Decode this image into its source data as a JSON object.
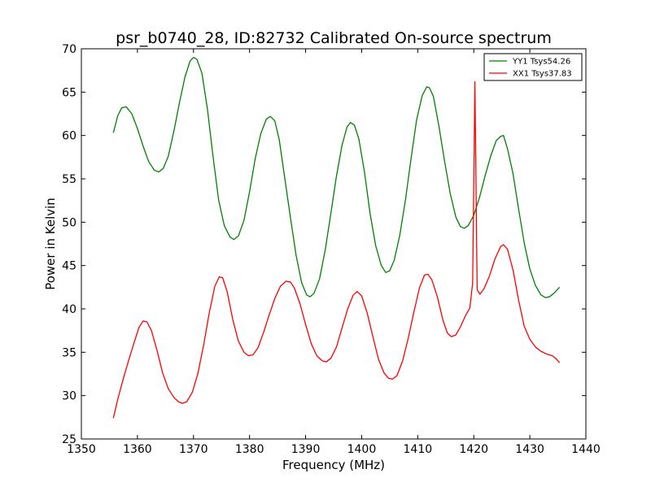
{
  "chart_data": {
    "type": "line",
    "title": "psr_b0740_28, ID:82732 Calibrated On-source spectrum",
    "xlabel": "Frequency (MHz)",
    "ylabel": "Power in Kelvin",
    "xlim": [
      1350,
      1440
    ],
    "ylim": [
      25,
      70
    ],
    "xticks": [
      1350,
      1360,
      1370,
      1380,
      1390,
      1400,
      1410,
      1420,
      1430,
      1440
    ],
    "yticks": [
      25,
      30,
      35,
      40,
      45,
      50,
      55,
      60,
      65,
      70
    ],
    "grid": false,
    "legend_position": "top-right",
    "series": [
      {
        "name": "YY1 Tsys54.26",
        "color": "#008000",
        "points": [
          [
            1355.7,
            60.3
          ],
          [
            1356.5,
            62.3
          ],
          [
            1357.2,
            63.2
          ],
          [
            1358,
            63.3
          ],
          [
            1359,
            62.5
          ],
          [
            1360,
            60.8
          ],
          [
            1361,
            58.8
          ],
          [
            1362,
            57.0
          ],
          [
            1363,
            56.0
          ],
          [
            1363.8,
            55.8
          ],
          [
            1364.6,
            56.2
          ],
          [
            1365.5,
            57.6
          ],
          [
            1366.5,
            60.5
          ],
          [
            1367.5,
            63.8
          ],
          [
            1368.5,
            66.8
          ],
          [
            1369.4,
            68.6
          ],
          [
            1370,
            69.0
          ],
          [
            1370.6,
            68.8
          ],
          [
            1371.5,
            67.2
          ],
          [
            1372.5,
            63.0
          ],
          [
            1373.5,
            57.5
          ],
          [
            1374.5,
            52.5
          ],
          [
            1375.5,
            49.6
          ],
          [
            1376.5,
            48.3
          ],
          [
            1377.2,
            48.0
          ],
          [
            1378,
            48.4
          ],
          [
            1379,
            50.2
          ],
          [
            1380,
            53.5
          ],
          [
            1381,
            57.3
          ],
          [
            1382,
            60.2
          ],
          [
            1383,
            61.9
          ],
          [
            1383.7,
            62.2
          ],
          [
            1384.5,
            61.7
          ],
          [
            1385.3,
            59.5
          ],
          [
            1386.3,
            55.0
          ],
          [
            1387.3,
            50.5
          ],
          [
            1388.3,
            46.2
          ],
          [
            1389.3,
            43.0
          ],
          [
            1390.2,
            41.6
          ],
          [
            1390.8,
            41.4
          ],
          [
            1391.5,
            41.8
          ],
          [
            1392.5,
            43.5
          ],
          [
            1393.5,
            46.8
          ],
          [
            1394.5,
            51.0
          ],
          [
            1395.5,
            55.3
          ],
          [
            1396.5,
            58.9
          ],
          [
            1397.4,
            61.0
          ],
          [
            1398,
            61.5
          ],
          [
            1398.7,
            61.2
          ],
          [
            1399.5,
            59.6
          ],
          [
            1400.5,
            55.8
          ],
          [
            1401.5,
            51.0
          ],
          [
            1402.5,
            47.3
          ],
          [
            1403.5,
            45.0
          ],
          [
            1404.3,
            44.2
          ],
          [
            1405,
            44.4
          ],
          [
            1405.8,
            45.6
          ],
          [
            1406.8,
            48.5
          ],
          [
            1407.8,
            52.5
          ],
          [
            1408.8,
            57.3
          ],
          [
            1409.8,
            61.8
          ],
          [
            1410.8,
            64.6
          ],
          [
            1411.6,
            65.6
          ],
          [
            1412.1,
            65.5
          ],
          [
            1412.8,
            64.5
          ],
          [
            1413.8,
            61.0
          ],
          [
            1414.8,
            57.0
          ],
          [
            1415.8,
            53.3
          ],
          [
            1416.8,
            50.6
          ],
          [
            1417.6,
            49.5
          ],
          [
            1418.3,
            49.3
          ],
          [
            1419,
            49.6
          ],
          [
            1420,
            50.8
          ],
          [
            1421,
            52.8
          ],
          [
            1422,
            55.3
          ],
          [
            1423,
            57.6
          ],
          [
            1424,
            59.4
          ],
          [
            1424.8,
            59.9
          ],
          [
            1425.3,
            60.0
          ],
          [
            1426,
            58.5
          ],
          [
            1427,
            55.6
          ],
          [
            1428,
            51.5
          ],
          [
            1429,
            47.6
          ],
          [
            1430,
            44.6
          ],
          [
            1431,
            42.7
          ],
          [
            1432,
            41.6
          ],
          [
            1432.8,
            41.3
          ],
          [
            1433.5,
            41.4
          ],
          [
            1434.3,
            41.8
          ],
          [
            1435.3,
            42.5
          ]
        ]
      },
      {
        "name": "XX1 Tsys37.83",
        "color": "#ff0000",
        "points": [
          [
            1355.7,
            27.4
          ],
          [
            1356.5,
            29.6
          ],
          [
            1357.5,
            32.0
          ],
          [
            1358.5,
            34.2
          ],
          [
            1359.5,
            36.3
          ],
          [
            1360.3,
            37.9
          ],
          [
            1361,
            38.6
          ],
          [
            1361.7,
            38.5
          ],
          [
            1362.5,
            37.5
          ],
          [
            1363.5,
            35.2
          ],
          [
            1364.5,
            32.6
          ],
          [
            1365.5,
            30.8
          ],
          [
            1366.5,
            29.8
          ],
          [
            1367.3,
            29.3
          ],
          [
            1368,
            29.1
          ],
          [
            1368.8,
            29.3
          ],
          [
            1369.8,
            30.4
          ],
          [
            1370.8,
            32.6
          ],
          [
            1371.8,
            35.8
          ],
          [
            1372.8,
            39.5
          ],
          [
            1373.8,
            42.6
          ],
          [
            1374.6,
            43.7
          ],
          [
            1375.2,
            43.6
          ],
          [
            1376,
            42.0
          ],
          [
            1377,
            38.8
          ],
          [
            1378,
            36.3
          ],
          [
            1379,
            35.0
          ],
          [
            1379.8,
            34.6
          ],
          [
            1380.6,
            34.7
          ],
          [
            1381.5,
            35.5
          ],
          [
            1382.5,
            37.3
          ],
          [
            1383.5,
            39.3
          ],
          [
            1384.5,
            41.2
          ],
          [
            1385.5,
            42.6
          ],
          [
            1386.5,
            43.2
          ],
          [
            1387.3,
            43.1
          ],
          [
            1388,
            42.4
          ],
          [
            1389,
            40.6
          ],
          [
            1390,
            38.2
          ],
          [
            1391,
            36.0
          ],
          [
            1392,
            34.6
          ],
          [
            1393,
            34.0
          ],
          [
            1393.7,
            33.9
          ],
          [
            1394.5,
            34.3
          ],
          [
            1395.5,
            35.6
          ],
          [
            1396.5,
            37.8
          ],
          [
            1397.5,
            40.0
          ],
          [
            1398.5,
            41.6
          ],
          [
            1399.2,
            42.0
          ],
          [
            1400,
            41.5
          ],
          [
            1401,
            39.5
          ],
          [
            1402,
            36.8
          ],
          [
            1403,
            34.2
          ],
          [
            1404,
            32.6
          ],
          [
            1404.8,
            32.0
          ],
          [
            1405.5,
            31.9
          ],
          [
            1406.3,
            32.3
          ],
          [
            1407.3,
            34.0
          ],
          [
            1408.3,
            36.6
          ],
          [
            1409.3,
            39.6
          ],
          [
            1410.3,
            42.4
          ],
          [
            1411.2,
            43.9
          ],
          [
            1411.8,
            44.0
          ],
          [
            1412.5,
            43.4
          ],
          [
            1413.5,
            41.4
          ],
          [
            1414.5,
            38.7
          ],
          [
            1415.3,
            37.2
          ],
          [
            1416,
            36.8
          ],
          [
            1416.8,
            37.0
          ],
          [
            1417.6,
            37.9
          ],
          [
            1418.5,
            39.2
          ],
          [
            1419.3,
            40.1
          ],
          [
            1419.8,
            43.0
          ],
          [
            1420.2,
            66.2
          ],
          [
            1420.6,
            42.2
          ],
          [
            1421.1,
            41.7
          ],
          [
            1421.8,
            42.3
          ],
          [
            1422.8,
            43.8
          ],
          [
            1423.8,
            45.8
          ],
          [
            1424.8,
            47.2
          ],
          [
            1425.3,
            47.4
          ],
          [
            1426,
            46.9
          ],
          [
            1427,
            44.5
          ],
          [
            1428,
            41.0
          ],
          [
            1429,
            38.0
          ],
          [
            1430,
            36.5
          ],
          [
            1431,
            35.6
          ],
          [
            1432,
            35.1
          ],
          [
            1433,
            34.8
          ],
          [
            1434,
            34.6
          ],
          [
            1434.6,
            34.3
          ],
          [
            1435.3,
            33.8
          ]
        ]
      }
    ]
  }
}
